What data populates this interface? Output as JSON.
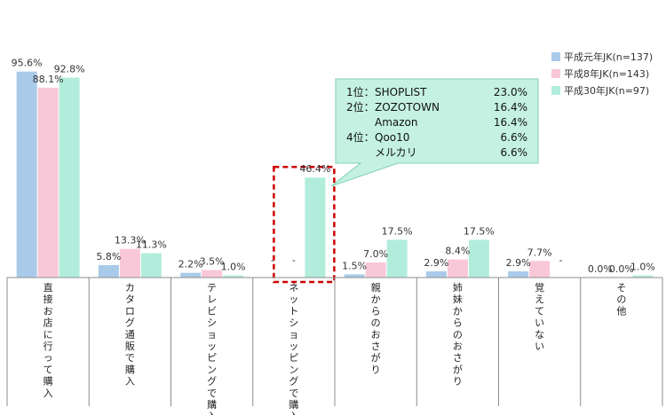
{
  "chart_data": {
    "type": "bar",
    "title": "",
    "xlabel": "",
    "ylabel": "",
    "ylim": [
      0,
      100
    ],
    "grid": false,
    "legend_position": "top-right",
    "categories": [
      "直接お店に行って購入",
      "カタログ通販で購入",
      "テレビショッピングで購入",
      "ネットショッピングで購入",
      "親からのおさがり",
      "姉妹からのおさがり",
      "覚えていない",
      "その他"
    ],
    "series": [
      {
        "name": "平成元年JK(n=137)",
        "color": "#a9cbe9",
        "values": [
          95.6,
          5.8,
          2.2,
          null,
          1.5,
          2.9,
          2.9,
          0.0
        ],
        "labels": [
          "95.6%",
          "5.8%",
          "2.2%",
          "-",
          "1.5%",
          "2.9%",
          "2.9%",
          "0.0%"
        ]
      },
      {
        "name": "平成8年JK(n=143)",
        "color": "#f9c8d8",
        "values": [
          88.1,
          13.3,
          3.5,
          null,
          7.0,
          8.4,
          7.7,
          0.0
        ],
        "labels": [
          "88.1%",
          "13.3%",
          "3.5%",
          "-",
          "7.0%",
          "8.4%",
          "7.7%",
          "0.0%"
        ]
      },
      {
        "name": "平成30年JK(n=97)",
        "color": "#b2eddc",
        "values": [
          92.8,
          11.3,
          1.0,
          46.4,
          17.5,
          17.5,
          null,
          1.0
        ],
        "labels": [
          "92.8%",
          "11.3%",
          "1.0%",
          "46.4%",
          "17.5%",
          "17.5%",
          "-",
          "1.0%"
        ]
      }
    ],
    "highlight": {
      "category_index": 3,
      "series_index": 2,
      "color": "#cc0000"
    },
    "callout": {
      "background": "#c4f1e2",
      "border": "#7fcfb4",
      "rows": [
        {
          "rank": "1位：",
          "name": "SHOPLIST",
          "value": "23.0%"
        },
        {
          "rank": "2位：",
          "name": "ZOZOTOWN",
          "value": "16.4%"
        },
        {
          "rank": "",
          "name": "Amazon",
          "value": "16.4%"
        },
        {
          "rank": "4位：",
          "name": "Qoo10",
          "value": "6.6%"
        },
        {
          "rank": "",
          "name": "メルカリ",
          "value": "6.6%"
        }
      ]
    }
  }
}
